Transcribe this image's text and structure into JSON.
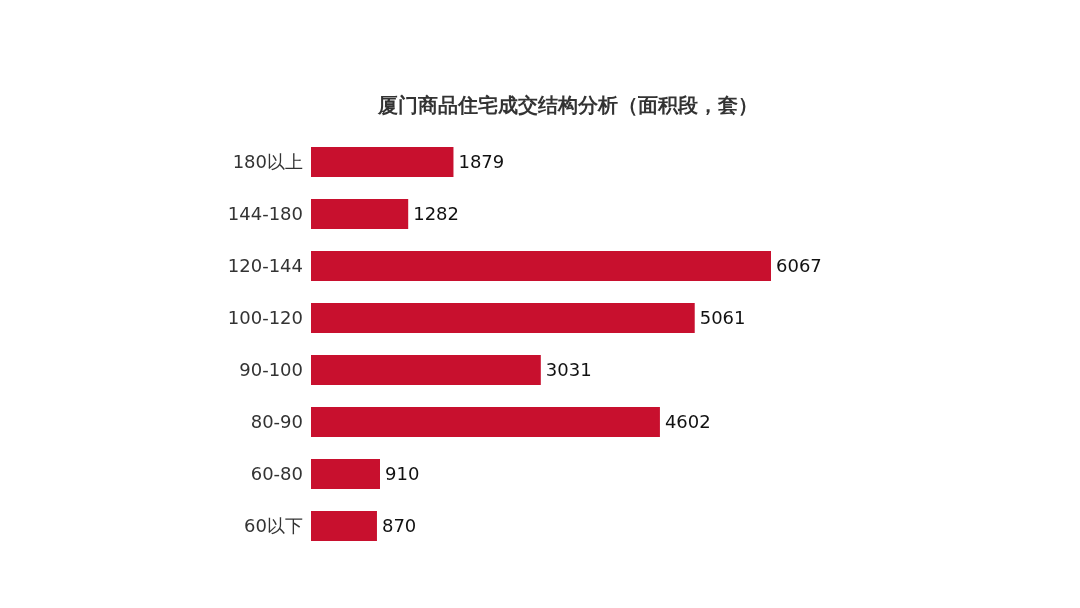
{
  "chart_data": {
    "type": "bar",
    "orientation": "horizontal",
    "title": "厦门商品住宅成交结构分析（面积段，套）",
    "categories": [
      "180以上",
      "144-180",
      "120-144",
      "100-120",
      "90-100",
      "80-90",
      "60-80",
      "60以下"
    ],
    "values": [
      1879,
      1282,
      6067,
      5061,
      3031,
      4602,
      910,
      870
    ],
    "color": "#c8102e",
    "data_labels": true,
    "tick_labels": "y"
  }
}
